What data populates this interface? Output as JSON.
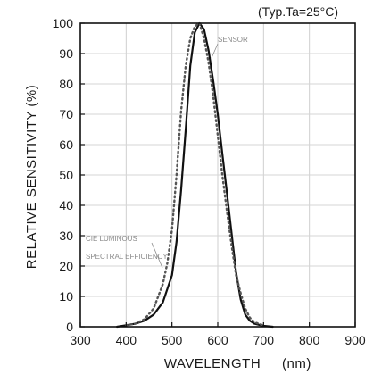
{
  "chart_data": {
    "type": "line",
    "condition_note": "(Typ.Ta=25°C)",
    "xlabel": "WAVELENGTH",
    "xunit": "(nm)",
    "ylabel": "RELATIVE SENSITIVITY (%)",
    "xlim": [
      300,
      900
    ],
    "ylim": [
      0,
      100
    ],
    "xticks": [
      300,
      400,
      500,
      600,
      700,
      800,
      900
    ],
    "yticks": [
      0,
      10,
      20,
      30,
      40,
      50,
      60,
      70,
      80,
      90,
      100
    ],
    "grid": true,
    "series": [
      {
        "name": "SENSOR",
        "style": "solid",
        "color": "#111111",
        "x": [
          380,
          400,
          420,
          440,
          460,
          480,
          500,
          510,
          520,
          530,
          540,
          550,
          560,
          570,
          580,
          590,
          600,
          610,
          620,
          630,
          640,
          650,
          660,
          670,
          680,
          700,
          720
        ],
        "y": [
          0,
          0.5,
          1,
          2,
          4,
          8,
          17,
          28,
          45,
          65,
          86,
          97,
          100,
          98,
          91,
          81,
          70,
          57,
          44,
          31,
          18,
          9,
          4,
          2,
          1,
          0.3,
          0
        ]
      },
      {
        "name": "CIE LUMINOUS SPECTRAL EFFICIENCY",
        "style": "dotted",
        "color": "#555555",
        "x": [
          400,
          420,
          440,
          460,
          480,
          490,
          500,
          510,
          520,
          530,
          540,
          550,
          560,
          570,
          580,
          590,
          600,
          610,
          620,
          630,
          640,
          650,
          660,
          670,
          680,
          700
        ],
        "y": [
          0.5,
          1,
          2.5,
          6,
          14,
          21,
          32,
          50,
          71,
          86,
          95,
          99,
          100,
          95,
          87,
          76,
          63,
          50,
          38,
          27,
          17,
          11,
          6,
          3,
          1.5,
          0.4
        ]
      }
    ],
    "annotations": [
      {
        "text": "SENSOR"
      },
      {
        "text": "CIE LUMINOUS"
      },
      {
        "text": "SPECTRAL EFFICIENCY"
      }
    ]
  }
}
